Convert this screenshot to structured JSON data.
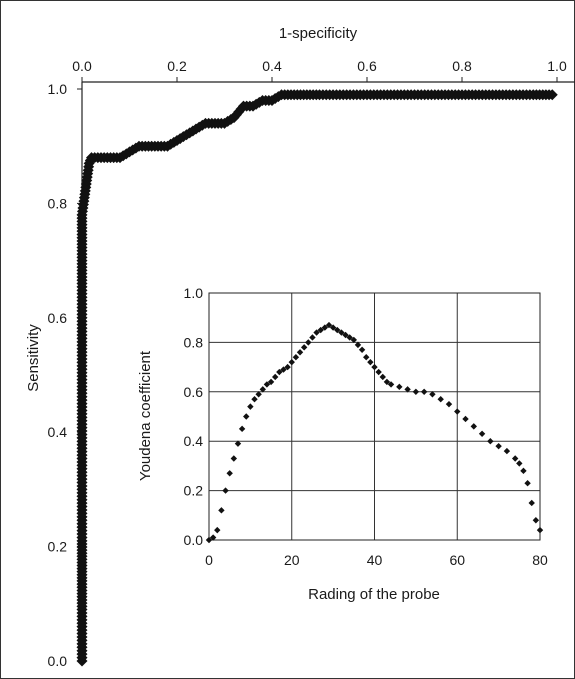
{
  "chart_data": [
    {
      "type": "scatter",
      "title": "",
      "xlabel": "1-specificity",
      "ylabel": "Sensitivity",
      "xlim": [
        0,
        1.0
      ],
      "ylim": [
        0,
        1.0
      ],
      "xticks": [
        "0.0",
        "0.2",
        "0.4",
        "0.6",
        "0.8",
        "1.0"
      ],
      "yticks": [
        "0.0",
        "0.2",
        "0.4",
        "0.6",
        "0.8",
        "1.0"
      ],
      "x_axis_position": "top",
      "grid": false,
      "marker": "diamond",
      "color": "#111111",
      "series": [
        {
          "x": [
            0,
            0,
            0,
            0,
            0,
            0,
            0,
            0,
            0,
            0,
            0,
            0,
            0,
            0,
            0,
            0,
            0,
            0,
            0,
            0,
            0,
            0,
            0,
            0,
            0.005,
            0.01,
            0.015,
            0.02,
            0.04,
            0.06,
            0.08,
            0.1,
            0.12,
            0.14,
            0.16,
            0.18,
            0.2,
            0.22,
            0.24,
            0.26,
            0.28,
            0.3,
            0.32,
            0.34,
            0.36,
            0.38,
            0.4,
            0.42,
            0.44,
            0.46,
            0.48,
            0.5,
            0.55,
            0.6,
            0.65,
            0.7,
            0.75,
            0.8,
            0.85,
            0.9,
            0.95,
            0.99
          ],
          "y": [
            0.0,
            0.03,
            0.06,
            0.09,
            0.14,
            0.21,
            0.24,
            0.27,
            0.3,
            0.33,
            0.36,
            0.39,
            0.42,
            0.45,
            0.48,
            0.51,
            0.54,
            0.57,
            0.6,
            0.63,
            0.66,
            0.7,
            0.74,
            0.78,
            0.81,
            0.84,
            0.87,
            0.88,
            0.88,
            0.88,
            0.88,
            0.89,
            0.9,
            0.9,
            0.9,
            0.9,
            0.91,
            0.92,
            0.93,
            0.94,
            0.94,
            0.94,
            0.95,
            0.97,
            0.97,
            0.98,
            0.98,
            0.99,
            0.99,
            0.99,
            0.99,
            0.99,
            0.99,
            0.99,
            0.99,
            0.99,
            0.99,
            0.99,
            0.99,
            0.99,
            0.99,
            0.99
          ]
        }
      ]
    },
    {
      "type": "scatter",
      "title": "",
      "xlabel": "Rading of the probe",
      "ylabel": "Youdena coefficient",
      "xlim": [
        0,
        80
      ],
      "ylim": [
        0,
        1.0
      ],
      "xticks": [
        "0",
        "20",
        "40",
        "60",
        "80"
      ],
      "yticks": [
        "0.0",
        "0.2",
        "0.4",
        "0.6",
        "0.8",
        "1.0"
      ],
      "grid": true,
      "marker": "diamond",
      "color": "#111111",
      "series": [
        {
          "x": [
            0,
            1,
            2,
            3,
            4,
            5,
            6,
            7,
            8,
            9,
            10,
            11,
            12,
            13,
            14,
            15,
            16,
            17,
            18,
            19,
            20,
            21,
            22,
            23,
            24,
            25,
            26,
            27,
            28,
            29,
            30,
            31,
            32,
            33,
            34,
            35,
            36,
            37,
            38,
            39,
            40,
            41,
            42,
            43,
            44,
            46,
            48,
            50,
            52,
            54,
            56,
            58,
            60,
            62,
            64,
            66,
            68,
            70,
            72,
            74,
            75,
            76,
            77,
            78,
            79,
            80
          ],
          "y": [
            0.0,
            0.01,
            0.04,
            0.12,
            0.2,
            0.27,
            0.33,
            0.39,
            0.45,
            0.5,
            0.54,
            0.57,
            0.59,
            0.61,
            0.63,
            0.64,
            0.66,
            0.68,
            0.69,
            0.7,
            0.72,
            0.74,
            0.76,
            0.78,
            0.8,
            0.82,
            0.84,
            0.85,
            0.86,
            0.87,
            0.86,
            0.85,
            0.84,
            0.83,
            0.82,
            0.81,
            0.79,
            0.77,
            0.74,
            0.72,
            0.7,
            0.68,
            0.66,
            0.64,
            0.63,
            0.62,
            0.61,
            0.6,
            0.6,
            0.59,
            0.57,
            0.55,
            0.52,
            0.49,
            0.46,
            0.43,
            0.4,
            0.38,
            0.36,
            0.33,
            0.31,
            0.28,
            0.23,
            0.15,
            0.08,
            0.04
          ]
        }
      ]
    }
  ]
}
